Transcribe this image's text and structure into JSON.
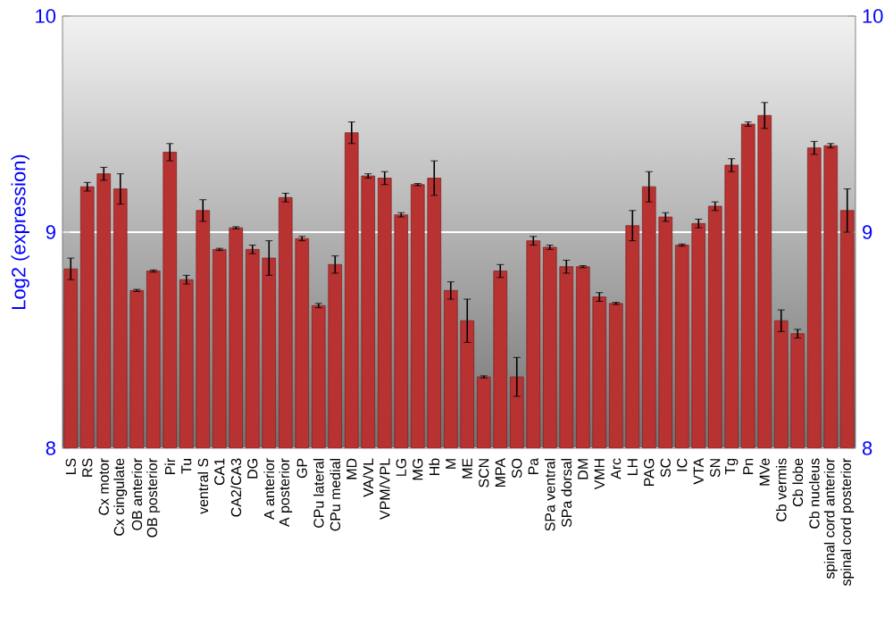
{
  "chart_data": {
    "type": "bar",
    "ylabel": "Log2 (expression)",
    "categories": [
      "LS",
      "RS",
      "Cx motor",
      "Cx cingulate",
      "OB anterior",
      "OB posterior",
      "Pir",
      "Tu",
      "ventral S",
      "CA1",
      "CA2/CA3",
      "DG",
      "A anterior",
      "A posterior",
      "GP",
      "CPu lateral",
      "CPu medial",
      "MD",
      "VA/VL",
      "VPM/VPL",
      "LG",
      "MG",
      "Hb",
      "M",
      "ME",
      "SCN",
      "MPA",
      "SO",
      "Pa",
      "SPa ventral",
      "SPa dorsal",
      "DM",
      "VMH",
      "Arc",
      "LH",
      "PAG",
      "SC",
      "IC",
      "VTA",
      "SN",
      "Tg",
      "Pn",
      "MVe",
      "Cb vermis",
      "Cb lobe",
      "Cb nucleus",
      "spinal cord anterior",
      "spinal cord posterior"
    ],
    "values": [
      8.83,
      9.21,
      9.27,
      9.2,
      8.73,
      8.82,
      9.37,
      8.78,
      9.1,
      8.92,
      9.02,
      8.92,
      8.88,
      9.16,
      8.97,
      8.66,
      8.85,
      9.46,
      9.26,
      9.25,
      9.08,
      9.22,
      9.25,
      8.73,
      8.59,
      8.33,
      8.82,
      8.33,
      8.96,
      8.93,
      8.84,
      8.84,
      8.7,
      8.67,
      9.03,
      9.21,
      9.07,
      8.94,
      9.04,
      9.12,
      9.31,
      9.5,
      9.54,
      8.59,
      8.53,
      9.39,
      9.4,
      9.1
    ],
    "errors": [
      0.05,
      0.02,
      0.03,
      0.07,
      0.005,
      0.005,
      0.04,
      0.02,
      0.05,
      0.005,
      0.005,
      0.02,
      0.08,
      0.02,
      0.01,
      0.01,
      0.04,
      0.05,
      0.01,
      0.03,
      0.01,
      0.005,
      0.08,
      0.04,
      0.1,
      0.005,
      0.03,
      0.09,
      0.02,
      0.01,
      0.03,
      0.005,
      0.02,
      0.005,
      0.07,
      0.07,
      0.02,
      0.005,
      0.02,
      0.02,
      0.03,
      0.01,
      0.06,
      0.05,
      0.02,
      0.03,
      0.01,
      0.1
    ],
    "color": "#b83232",
    "ylim": [
      8,
      10
    ],
    "yticks": [
      8,
      9,
      10
    ],
    "y2lim": [
      8,
      10
    ],
    "y2ticks": [
      8,
      9,
      10
    ],
    "grid": "y"
  }
}
